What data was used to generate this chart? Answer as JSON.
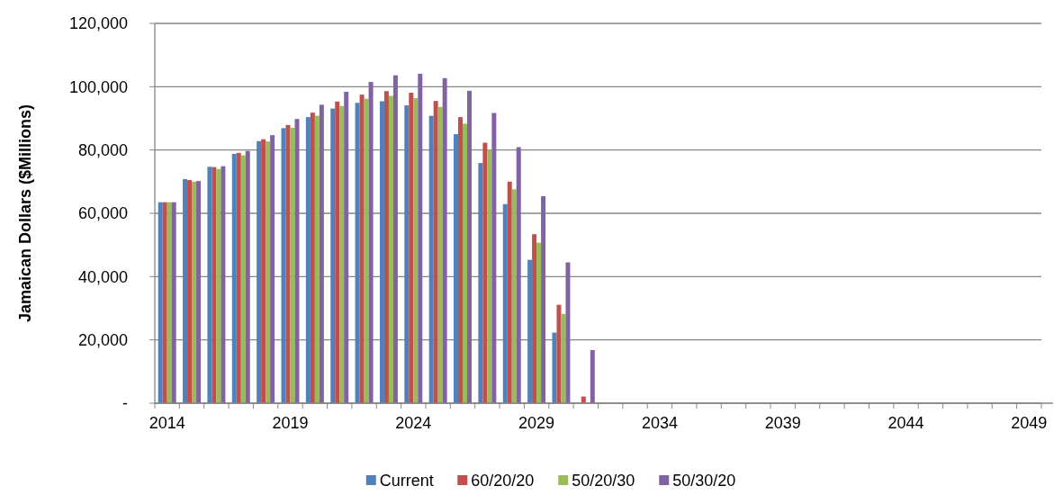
{
  "chart_data": {
    "type": "bar",
    "ylabel": "Jamaican Dollars ($Millions)",
    "categories": [
      "2014",
      null,
      null,
      null,
      null,
      "2019",
      null,
      null,
      null,
      null,
      "2024",
      null,
      null,
      null,
      null,
      "2029",
      null,
      null,
      null,
      null,
      "2034",
      null,
      null,
      null,
      null,
      "2039",
      null,
      null,
      null,
      null,
      "2044",
      null,
      null,
      null,
      null,
      "2049"
    ],
    "series": [
      {
        "name": "Current",
        "color": "#4f81bd",
        "values": [
          63500,
          70800,
          74700,
          78800,
          82800,
          86900,
          90400,
          93100,
          94900,
          95400,
          94100,
          90800,
          85000,
          75900,
          62900,
          45300,
          22300,
          0,
          0,
          0,
          0,
          0,
          0,
          0,
          0,
          0,
          0,
          0,
          0,
          0,
          0,
          0,
          0,
          0,
          0,
          0
        ]
      },
      {
        "name": "60/20/20",
        "color": "#c0504d",
        "values": [
          63500,
          70500,
          74600,
          79100,
          83400,
          87900,
          91800,
          95300,
          97500,
          98600,
          98100,
          95500,
          90400,
          82300,
          70000,
          53400,
          31100,
          2100,
          0,
          0,
          0,
          0,
          0,
          0,
          0,
          0,
          0,
          0,
          0,
          0,
          0,
          0,
          0,
          0,
          0,
          0
        ]
      },
      {
        "name": "50/20/30",
        "color": "#9bbb59",
        "values": [
          63500,
          70000,
          74000,
          78300,
          82700,
          87000,
          90800,
          93900,
          96200,
          97100,
          96400,
          93600,
          88300,
          80100,
          67600,
          50700,
          28200,
          0,
          0,
          0,
          0,
          0,
          0,
          0,
          0,
          0,
          0,
          0,
          0,
          0,
          0,
          0,
          0,
          0,
          0,
          0
        ]
      },
      {
        "name": "50/30/20",
        "color": "#8064a2",
        "values": [
          63500,
          70200,
          74900,
          79700,
          84700,
          89800,
          94300,
          98400,
          101500,
          103600,
          104100,
          102700,
          98700,
          91700,
          80900,
          65400,
          44500,
          16800,
          0,
          0,
          0,
          0,
          0,
          0,
          0,
          0,
          0,
          0,
          0,
          0,
          0,
          0,
          0,
          0,
          0,
          0
        ]
      }
    ],
    "ylim": [
      0,
      120000
    ],
    "yticks": [
      {
        "value": 0,
        "label": "-"
      },
      {
        "value": 20000,
        "label": "20,000"
      },
      {
        "value": 40000,
        "label": "40,000"
      },
      {
        "value": 60000,
        "label": "60,000"
      },
      {
        "value": 80000,
        "label": "80,000"
      },
      {
        "value": 100000,
        "label": "100,000"
      },
      {
        "value": 120000,
        "label": "120,000"
      }
    ],
    "grid": "y",
    "legend": "bottom"
  }
}
